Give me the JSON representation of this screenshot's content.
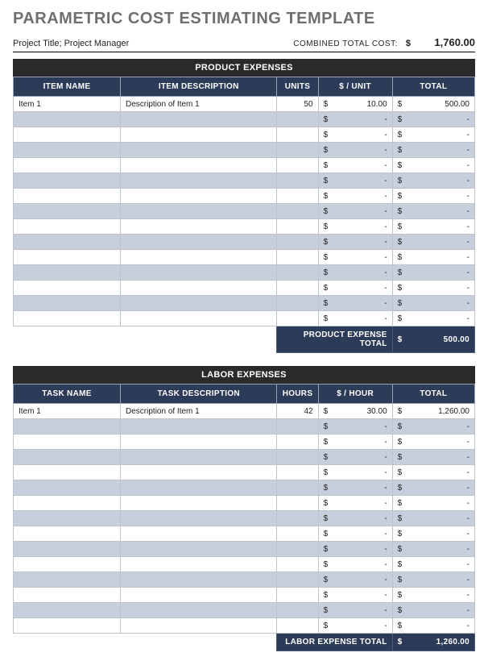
{
  "page_title": "PARAMETRIC COST ESTIMATING TEMPLATE",
  "meta": {
    "left": "Project Title; Project Manager",
    "combined_label": "COMBINED TOTAL COST:",
    "currency": "$",
    "combined_total": "1,760.00"
  },
  "colors": {
    "title_color": "#6f6f6f",
    "section_bar_bg": "#2a2a2d",
    "header_bg": "#2c3b58",
    "alt_row_bg": "#c8cfdc",
    "border": "#bfc3cc"
  },
  "product": {
    "section_title": "PRODUCT EXPENSES",
    "columns": [
      "ITEM NAME",
      "ITEM DESCRIPTION",
      "UNITS",
      "$ / UNIT",
      "TOTAL"
    ],
    "rows": [
      {
        "name": "Item 1",
        "desc": "Description of Item 1",
        "units": "50",
        "unit_price": "10.00",
        "total": "500.00",
        "alt": false
      },
      {
        "name": "",
        "desc": "",
        "units": "",
        "unit_price": "-",
        "total": "-",
        "alt": true
      },
      {
        "name": "",
        "desc": "",
        "units": "",
        "unit_price": "-",
        "total": "-",
        "alt": false
      },
      {
        "name": "",
        "desc": "",
        "units": "",
        "unit_price": "-",
        "total": "-",
        "alt": true
      },
      {
        "name": "",
        "desc": "",
        "units": "",
        "unit_price": "-",
        "total": "-",
        "alt": false
      },
      {
        "name": "",
        "desc": "",
        "units": "",
        "unit_price": "-",
        "total": "-",
        "alt": true
      },
      {
        "name": "",
        "desc": "",
        "units": "",
        "unit_price": "-",
        "total": "-",
        "alt": false
      },
      {
        "name": "",
        "desc": "",
        "units": "",
        "unit_price": "-",
        "total": "-",
        "alt": true
      },
      {
        "name": "",
        "desc": "",
        "units": "",
        "unit_price": "-",
        "total": "-",
        "alt": false
      },
      {
        "name": "",
        "desc": "",
        "units": "",
        "unit_price": "-",
        "total": "-",
        "alt": true
      },
      {
        "name": "",
        "desc": "",
        "units": "",
        "unit_price": "-",
        "total": "-",
        "alt": false
      },
      {
        "name": "",
        "desc": "",
        "units": "",
        "unit_price": "-",
        "total": "-",
        "alt": true
      },
      {
        "name": "",
        "desc": "",
        "units": "",
        "unit_price": "-",
        "total": "-",
        "alt": false
      },
      {
        "name": "",
        "desc": "",
        "units": "",
        "unit_price": "-",
        "total": "-",
        "alt": true
      },
      {
        "name": "",
        "desc": "",
        "units": "",
        "unit_price": "-",
        "total": "-",
        "alt": false
      }
    ],
    "total_label": "PRODUCT EXPENSE TOTAL",
    "total_value": "500.00"
  },
  "labor": {
    "section_title": "LABOR EXPENSES",
    "columns": [
      "TASK NAME",
      "TASK DESCRIPTION",
      "HOURS",
      "$ / HOUR",
      "TOTAL"
    ],
    "rows": [
      {
        "name": "Item 1",
        "desc": "Description of Item 1",
        "units": "42",
        "unit_price": "30.00",
        "total": "1,260.00",
        "alt": false
      },
      {
        "name": "",
        "desc": "",
        "units": "",
        "unit_price": "-",
        "total": "-",
        "alt": true
      },
      {
        "name": "",
        "desc": "",
        "units": "",
        "unit_price": "-",
        "total": "-",
        "alt": false
      },
      {
        "name": "",
        "desc": "",
        "units": "",
        "unit_price": "-",
        "total": "-",
        "alt": true
      },
      {
        "name": "",
        "desc": "",
        "units": "",
        "unit_price": "-",
        "total": "-",
        "alt": false
      },
      {
        "name": "",
        "desc": "",
        "units": "",
        "unit_price": "-",
        "total": "-",
        "alt": true
      },
      {
        "name": "",
        "desc": "",
        "units": "",
        "unit_price": "-",
        "total": "-",
        "alt": false
      },
      {
        "name": "",
        "desc": "",
        "units": "",
        "unit_price": "-",
        "total": "-",
        "alt": true
      },
      {
        "name": "",
        "desc": "",
        "units": "",
        "unit_price": "-",
        "total": "-",
        "alt": false
      },
      {
        "name": "",
        "desc": "",
        "units": "",
        "unit_price": "-",
        "total": "-",
        "alt": true
      },
      {
        "name": "",
        "desc": "",
        "units": "",
        "unit_price": "-",
        "total": "-",
        "alt": false
      },
      {
        "name": "",
        "desc": "",
        "units": "",
        "unit_price": "-",
        "total": "-",
        "alt": true
      },
      {
        "name": "",
        "desc": "",
        "units": "",
        "unit_price": "-",
        "total": "-",
        "alt": false
      },
      {
        "name": "",
        "desc": "",
        "units": "",
        "unit_price": "-",
        "total": "-",
        "alt": true
      },
      {
        "name": "",
        "desc": "",
        "units": "",
        "unit_price": "-",
        "total": "-",
        "alt": false
      }
    ],
    "total_label": "LABOR EXPENSE TOTAL",
    "total_value": "1,260.00"
  },
  "currency_symbol": "$"
}
